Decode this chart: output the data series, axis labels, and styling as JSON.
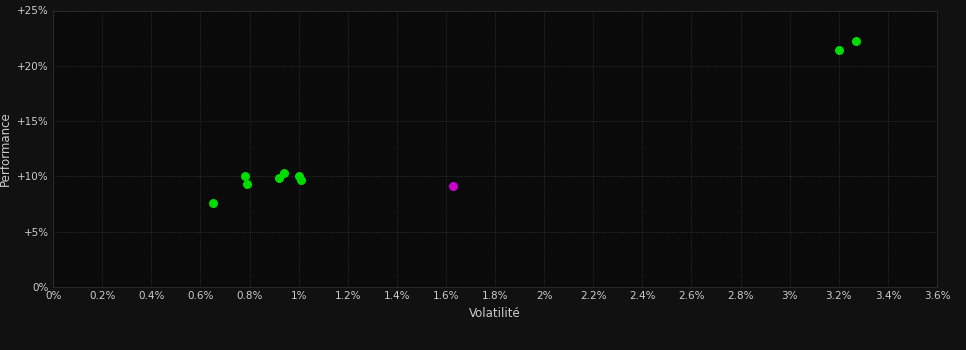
{
  "background_color": "#111111",
  "plot_bg_color": "#0a0a0a",
  "text_color": "#cccccc",
  "xlabel": "Volatilité",
  "ylabel": "Performance",
  "xlim": [
    0,
    0.036
  ],
  "ylim": [
    0,
    0.25
  ],
  "xticks": [
    0.0,
    0.002,
    0.004,
    0.006,
    0.008,
    0.01,
    0.012,
    0.014,
    0.016,
    0.018,
    0.02,
    0.022,
    0.024,
    0.026,
    0.028,
    0.03,
    0.032,
    0.034,
    0.036
  ],
  "yticks": [
    0.0,
    0.05,
    0.1,
    0.15,
    0.2,
    0.25
  ],
  "xtick_labels": [
    "0%",
    "0.2%",
    "0.4%",
    "0.6%",
    "0.8%",
    "1%",
    "1.2%",
    "1.4%",
    "1.6%",
    "1.8%",
    "2%",
    "2.2%",
    "2.4%",
    "2.6%",
    "2.8%",
    "3%",
    "3.2%",
    "3.4%",
    "3.6%"
  ],
  "ytick_labels": [
    "0%",
    "+5%",
    "+10%",
    "+15%",
    "+20%",
    "+25%"
  ],
  "green_points": [
    [
      0.0065,
      0.076
    ],
    [
      0.0078,
      0.1
    ],
    [
      0.0079,
      0.093
    ],
    [
      0.0092,
      0.099
    ],
    [
      0.0094,
      0.103
    ],
    [
      0.01,
      0.1
    ],
    [
      0.0101,
      0.097
    ],
    [
      0.032,
      0.214
    ],
    [
      0.0327,
      0.222
    ]
  ],
  "magenta_points": [
    [
      0.0163,
      0.091
    ]
  ],
  "point_size": 30,
  "marker": "o"
}
